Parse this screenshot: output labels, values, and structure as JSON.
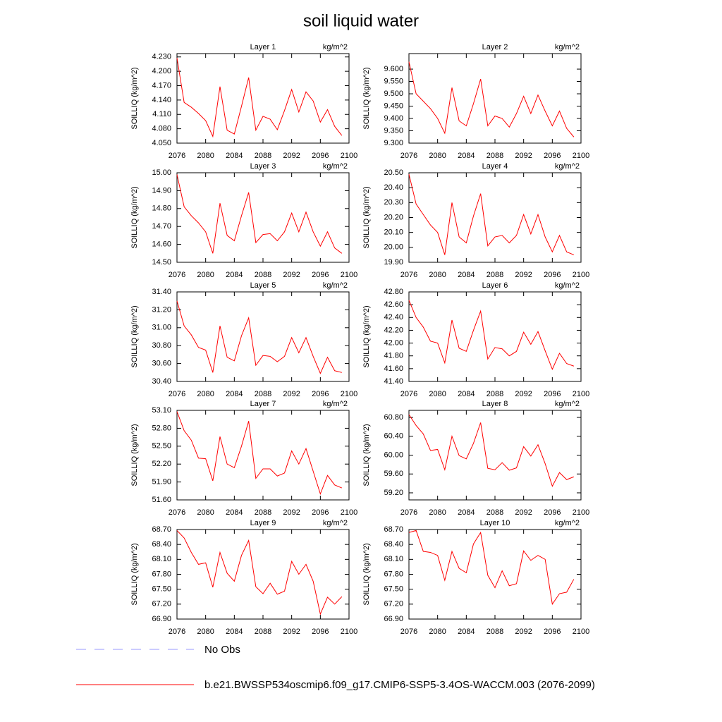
{
  "title": "soil liquid water",
  "legend": [
    {
      "name": "No Obs",
      "color": "#9a9aff",
      "dashed": true
    },
    {
      "name": "b.e21.BWSSP534oscmip6.f09_g17.CMIP6-SSP5-3.4OS-WACCM.003 (2076-2099)",
      "color": "#ff0000",
      "dashed": false
    }
  ],
  "chart_data": [
    {
      "type": "line",
      "title": "Layer 1",
      "units": "kg/m^2",
      "ylabel": "SOILLIQ  (kg/m^2)",
      "x": [
        2076,
        2077,
        2078,
        2079,
        2080,
        2081,
        2082,
        2083,
        2084,
        2085,
        2086,
        2087,
        2088,
        2089,
        2090,
        2091,
        2092,
        2093,
        2094,
        2095,
        2096,
        2097,
        2098,
        2099
      ],
      "xlim": [
        2076,
        2100
      ],
      "xticks": [
        2076,
        2080,
        2084,
        2088,
        2092,
        2096,
        2100
      ],
      "ylim": [
        4.05,
        4.237
      ],
      "yticks": [
        {
          "value": 4.05,
          "label": "4.050"
        },
        {
          "value": 4.08,
          "label": "4.080"
        },
        {
          "value": 4.11,
          "label": "4.110"
        },
        {
          "value": 4.14,
          "label": "4.140"
        },
        {
          "value": 4.17,
          "label": "4.170"
        },
        {
          "value": 4.2,
          "label": "4.200"
        },
        {
          "value": 4.23,
          "label": "4.230"
        }
      ],
      "series": [
        {
          "color": "#ff0000",
          "values": [
            4.228,
            4.135,
            4.125,
            4.112,
            4.097,
            4.064,
            4.168,
            4.077,
            4.069,
            4.127,
            4.187,
            4.077,
            4.106,
            4.1,
            4.078,
            4.118,
            4.162,
            4.115,
            4.157,
            4.138,
            4.094,
            4.12,
            4.085,
            4.066
          ]
        }
      ]
    },
    {
      "type": "line",
      "title": "Layer 2",
      "units": "kg/m^2",
      "ylabel": "SOILLIQ  (kg/m^2)",
      "x": [
        2076,
        2077,
        2078,
        2079,
        2080,
        2081,
        2082,
        2083,
        2084,
        2085,
        2086,
        2087,
        2088,
        2089,
        2090,
        2091,
        2092,
        2093,
        2094,
        2095,
        2096,
        2097,
        2098,
        2099
      ],
      "xlim": [
        2076,
        2100
      ],
      "xticks": [
        2076,
        2080,
        2084,
        2088,
        2092,
        2096,
        2100
      ],
      "ylim": [
        9.3,
        9.663
      ],
      "yticks": [
        {
          "value": 9.3,
          "label": "9.300"
        },
        {
          "value": 9.35,
          "label": "9.350"
        },
        {
          "value": 9.4,
          "label": "9.400"
        },
        {
          "value": 9.45,
          "label": "9.450"
        },
        {
          "value": 9.5,
          "label": "9.500"
        },
        {
          "value": 9.55,
          "label": "9.550"
        },
        {
          "value": 9.6,
          "label": "9.600"
        }
      ],
      "series": [
        {
          "color": "#ff0000",
          "values": [
            9.63,
            9.5,
            9.47,
            9.44,
            9.4,
            9.34,
            9.525,
            9.39,
            9.37,
            9.46,
            9.56,
            9.37,
            9.41,
            9.4,
            9.365,
            9.42,
            9.49,
            9.42,
            9.495,
            9.43,
            9.37,
            9.43,
            9.36,
            9.325
          ]
        }
      ]
    },
    {
      "type": "line",
      "title": "Layer 3",
      "units": "kg/m^2",
      "ylabel": "SOILLIQ  (kg/m^2)",
      "x": [
        2076,
        2077,
        2078,
        2079,
        2080,
        2081,
        2082,
        2083,
        2084,
        2085,
        2086,
        2087,
        2088,
        2089,
        2090,
        2091,
        2092,
        2093,
        2094,
        2095,
        2096,
        2097,
        2098,
        2099
      ],
      "xlim": [
        2076,
        2100
      ],
      "xticks": [
        2076,
        2080,
        2084,
        2088,
        2092,
        2096,
        2100
      ],
      "ylim": [
        14.5,
        15.0
      ],
      "yticks": [
        {
          "value": 14.5,
          "label": "14.50"
        },
        {
          "value": 14.6,
          "label": "14.60"
        },
        {
          "value": 14.7,
          "label": "14.70"
        },
        {
          "value": 14.8,
          "label": "14.80"
        },
        {
          "value": 14.9,
          "label": "14.90"
        },
        {
          "value": 15.0,
          "label": "15.00"
        }
      ],
      "series": [
        {
          "color": "#ff0000",
          "values": [
            14.99,
            14.81,
            14.76,
            14.72,
            14.67,
            14.55,
            14.83,
            14.65,
            14.62,
            14.76,
            14.89,
            14.61,
            14.655,
            14.66,
            14.62,
            14.67,
            14.775,
            14.67,
            14.78,
            14.67,
            14.59,
            14.67,
            14.58,
            14.55
          ]
        }
      ]
    },
    {
      "type": "line",
      "title": "Layer 4",
      "units": "kg/m^2",
      "ylabel": "SOILLIQ  (kg/m^2)",
      "x": [
        2076,
        2077,
        2078,
        2079,
        2080,
        2081,
        2082,
        2083,
        2084,
        2085,
        2086,
        2087,
        2088,
        2089,
        2090,
        2091,
        2092,
        2093,
        2094,
        2095,
        2096,
        2097,
        2098,
        2099
      ],
      "xlim": [
        2076,
        2100
      ],
      "xticks": [
        2076,
        2080,
        2084,
        2088,
        2092,
        2096,
        2100
      ],
      "ylim": [
        19.9,
        20.5
      ],
      "yticks": [
        {
          "value": 19.9,
          "label": "19.90"
        },
        {
          "value": 20.0,
          "label": "20.00"
        },
        {
          "value": 20.1,
          "label": "20.10"
        },
        {
          "value": 20.2,
          "label": "20.20"
        },
        {
          "value": 20.3,
          "label": "20.30"
        },
        {
          "value": 20.4,
          "label": "20.40"
        },
        {
          "value": 20.5,
          "label": "20.50"
        }
      ],
      "series": [
        {
          "color": "#ff0000",
          "values": [
            20.49,
            20.29,
            20.22,
            20.15,
            20.1,
            19.95,
            20.3,
            20.07,
            20.03,
            20.21,
            20.36,
            20.01,
            20.07,
            20.08,
            20.03,
            20.08,
            20.22,
            20.09,
            20.22,
            20.07,
            19.97,
            20.08,
            19.97,
            19.95
          ]
        }
      ]
    },
    {
      "type": "line",
      "title": "Layer 5",
      "units": "kg/m^2",
      "ylabel": "SOILLIQ  (kg/m^2)",
      "x": [
        2076,
        2077,
        2078,
        2079,
        2080,
        2081,
        2082,
        2083,
        2084,
        2085,
        2086,
        2087,
        2088,
        2089,
        2090,
        2091,
        2092,
        2093,
        2094,
        2095,
        2096,
        2097,
        2098,
        2099
      ],
      "xlim": [
        2076,
        2100
      ],
      "xticks": [
        2076,
        2080,
        2084,
        2088,
        2092,
        2096,
        2100
      ],
      "ylim": [
        30.4,
        31.4
      ],
      "yticks": [
        {
          "value": 30.4,
          "label": "30.40"
        },
        {
          "value": 30.6,
          "label": "30.60"
        },
        {
          "value": 30.8,
          "label": "30.80"
        },
        {
          "value": 31.0,
          "label": "31.00"
        },
        {
          "value": 31.2,
          "label": "31.20"
        },
        {
          "value": 31.4,
          "label": "31.40"
        }
      ],
      "series": [
        {
          "color": "#ff0000",
          "values": [
            31.3,
            31.02,
            30.92,
            30.78,
            30.75,
            30.5,
            31.02,
            30.67,
            30.63,
            30.91,
            31.11,
            30.58,
            30.69,
            30.68,
            30.62,
            30.68,
            30.89,
            30.72,
            30.89,
            30.68,
            30.49,
            30.67,
            30.52,
            30.5
          ]
        }
      ]
    },
    {
      "type": "line",
      "title": "Layer 6",
      "units": "kg/m^2",
      "ylabel": "SOILLIQ  (kg/m^2)",
      "x": [
        2076,
        2077,
        2078,
        2079,
        2080,
        2081,
        2082,
        2083,
        2084,
        2085,
        2086,
        2087,
        2088,
        2089,
        2090,
        2091,
        2092,
        2093,
        2094,
        2095,
        2096,
        2097,
        2098,
        2099
      ],
      "xlim": [
        2076,
        2100
      ],
      "xticks": [
        2076,
        2080,
        2084,
        2088,
        2092,
        2096,
        2100
      ],
      "ylim": [
        41.4,
        42.8
      ],
      "yticks": [
        {
          "value": 41.4,
          "label": "41.40"
        },
        {
          "value": 41.6,
          "label": "41.60"
        },
        {
          "value": 41.8,
          "label": "41.80"
        },
        {
          "value": 42.0,
          "label": "42.00"
        },
        {
          "value": 42.2,
          "label": "42.20"
        },
        {
          "value": 42.4,
          "label": "42.40"
        },
        {
          "value": 42.6,
          "label": "42.60"
        },
        {
          "value": 42.8,
          "label": "42.80"
        }
      ],
      "series": [
        {
          "color": "#ff0000",
          "values": [
            42.67,
            42.4,
            42.25,
            42.03,
            42.0,
            41.69,
            42.36,
            41.92,
            41.87,
            42.2,
            42.5,
            41.75,
            41.93,
            41.91,
            41.8,
            41.87,
            42.17,
            41.98,
            42.18,
            41.88,
            41.59,
            41.84,
            41.68,
            41.64
          ]
        }
      ]
    },
    {
      "type": "line",
      "title": "Layer 7",
      "units": "kg/m^2",
      "ylabel": "SOILLIQ  (kg/m^2)",
      "x": [
        2076,
        2077,
        2078,
        2079,
        2080,
        2081,
        2082,
        2083,
        2084,
        2085,
        2086,
        2087,
        2088,
        2089,
        2090,
        2091,
        2092,
        2093,
        2094,
        2095,
        2096,
        2097,
        2098,
        2099
      ],
      "xlim": [
        2076,
        2100
      ],
      "xticks": [
        2076,
        2080,
        2084,
        2088,
        2092,
        2096,
        2100
      ],
      "ylim": [
        51.6,
        53.1
      ],
      "yticks": [
        {
          "value": 51.6,
          "label": "51.60"
        },
        {
          "value": 51.9,
          "label": "51.90"
        },
        {
          "value": 52.2,
          "label": "52.20"
        },
        {
          "value": 52.5,
          "label": "52.50"
        },
        {
          "value": 52.8,
          "label": "52.80"
        },
        {
          "value": 53.1,
          "label": "53.10"
        }
      ],
      "series": [
        {
          "color": "#ff0000",
          "values": [
            53.08,
            52.76,
            52.6,
            52.3,
            52.29,
            51.92,
            52.66,
            52.2,
            52.14,
            52.5,
            52.92,
            51.96,
            52.12,
            52.12,
            52.0,
            52.05,
            52.42,
            52.2,
            52.46,
            52.08,
            51.7,
            52.01,
            51.85,
            51.8
          ]
        }
      ]
    },
    {
      "type": "line",
      "title": "Layer 8",
      "units": "kg/m^2",
      "ylabel": "SOILLIQ  (kg/m^2)",
      "x": [
        2076,
        2077,
        2078,
        2079,
        2080,
        2081,
        2082,
        2083,
        2084,
        2085,
        2086,
        2087,
        2088,
        2089,
        2090,
        2091,
        2092,
        2093,
        2094,
        2095,
        2096,
        2097,
        2098,
        2099
      ],
      "xlim": [
        2076,
        2100
      ],
      "xticks": [
        2076,
        2080,
        2084,
        2088,
        2092,
        2096,
        2100
      ],
      "ylim": [
        59.05,
        60.95
      ],
      "yticks": [
        {
          "value": 59.2,
          "label": "59.20"
        },
        {
          "value": 59.6,
          "label": "59.60"
        },
        {
          "value": 60.0,
          "label": "60.00"
        },
        {
          "value": 60.4,
          "label": "60.40"
        },
        {
          "value": 60.8,
          "label": "60.80"
        }
      ],
      "series": [
        {
          "color": "#ff0000",
          "values": [
            60.86,
            60.63,
            60.45,
            60.1,
            60.12,
            59.69,
            60.4,
            59.99,
            59.92,
            60.25,
            60.69,
            59.72,
            59.69,
            59.84,
            59.68,
            59.73,
            60.18,
            59.98,
            60.22,
            59.82,
            59.34,
            59.63,
            59.48,
            59.54
          ]
        }
      ]
    },
    {
      "type": "line",
      "title": "Layer 9",
      "units": "kg/m^2",
      "ylabel": "SOILLIQ  (kg/m^2)",
      "x": [
        2076,
        2077,
        2078,
        2079,
        2080,
        2081,
        2082,
        2083,
        2084,
        2085,
        2086,
        2087,
        2088,
        2089,
        2090,
        2091,
        2092,
        2093,
        2094,
        2095,
        2096,
        2097,
        2098,
        2099
      ],
      "xlim": [
        2076,
        2100
      ],
      "xticks": [
        2076,
        2080,
        2084,
        2088,
        2092,
        2096,
        2100
      ],
      "ylim": [
        66.9,
        68.7
      ],
      "yticks": [
        {
          "value": 66.9,
          "label": "66.90"
        },
        {
          "value": 67.2,
          "label": "67.20"
        },
        {
          "value": 67.5,
          "label": "67.50"
        },
        {
          "value": 67.8,
          "label": "67.80"
        },
        {
          "value": 68.1,
          "label": "68.10"
        },
        {
          "value": 68.4,
          "label": "68.40"
        },
        {
          "value": 68.7,
          "label": "68.70"
        }
      ],
      "series": [
        {
          "color": "#ff0000",
          "values": [
            68.68,
            68.53,
            68.24,
            68.0,
            68.03,
            67.54,
            68.24,
            67.82,
            67.66,
            68.18,
            68.48,
            67.55,
            67.41,
            67.62,
            67.4,
            67.46,
            68.06,
            67.8,
            68.0,
            67.66,
            67.0,
            67.34,
            67.2,
            67.35
          ]
        }
      ]
    },
    {
      "type": "line",
      "title": "Layer 10",
      "units": "kg/m^2",
      "ylabel": "SOILLIQ  (kg/m^2)",
      "x": [
        2076,
        2077,
        2078,
        2079,
        2080,
        2081,
        2082,
        2083,
        2084,
        2085,
        2086,
        2087,
        2088,
        2089,
        2090,
        2091,
        2092,
        2093,
        2094,
        2095,
        2096,
        2097,
        2098,
        2099
      ],
      "xlim": [
        2076,
        2100
      ],
      "xticks": [
        2076,
        2080,
        2084,
        2088,
        2092,
        2096,
        2100
      ],
      "ylim": [
        66.9,
        68.7
      ],
      "yticks": [
        {
          "value": 66.9,
          "label": "66.90"
        },
        {
          "value": 67.2,
          "label": "67.20"
        },
        {
          "value": 67.5,
          "label": "67.50"
        },
        {
          "value": 67.8,
          "label": "67.80"
        },
        {
          "value": 68.1,
          "label": "68.10"
        },
        {
          "value": 68.4,
          "label": "68.40"
        },
        {
          "value": 68.7,
          "label": "68.70"
        }
      ],
      "series": [
        {
          "color": "#ff0000",
          "values": [
            68.64,
            68.68,
            68.26,
            68.24,
            68.18,
            67.68,
            68.26,
            67.92,
            67.83,
            68.41,
            68.64,
            67.78,
            67.53,
            67.87,
            67.57,
            67.61,
            68.27,
            68.08,
            68.18,
            68.1,
            67.2,
            67.41,
            67.44,
            67.7
          ]
        }
      ]
    }
  ]
}
